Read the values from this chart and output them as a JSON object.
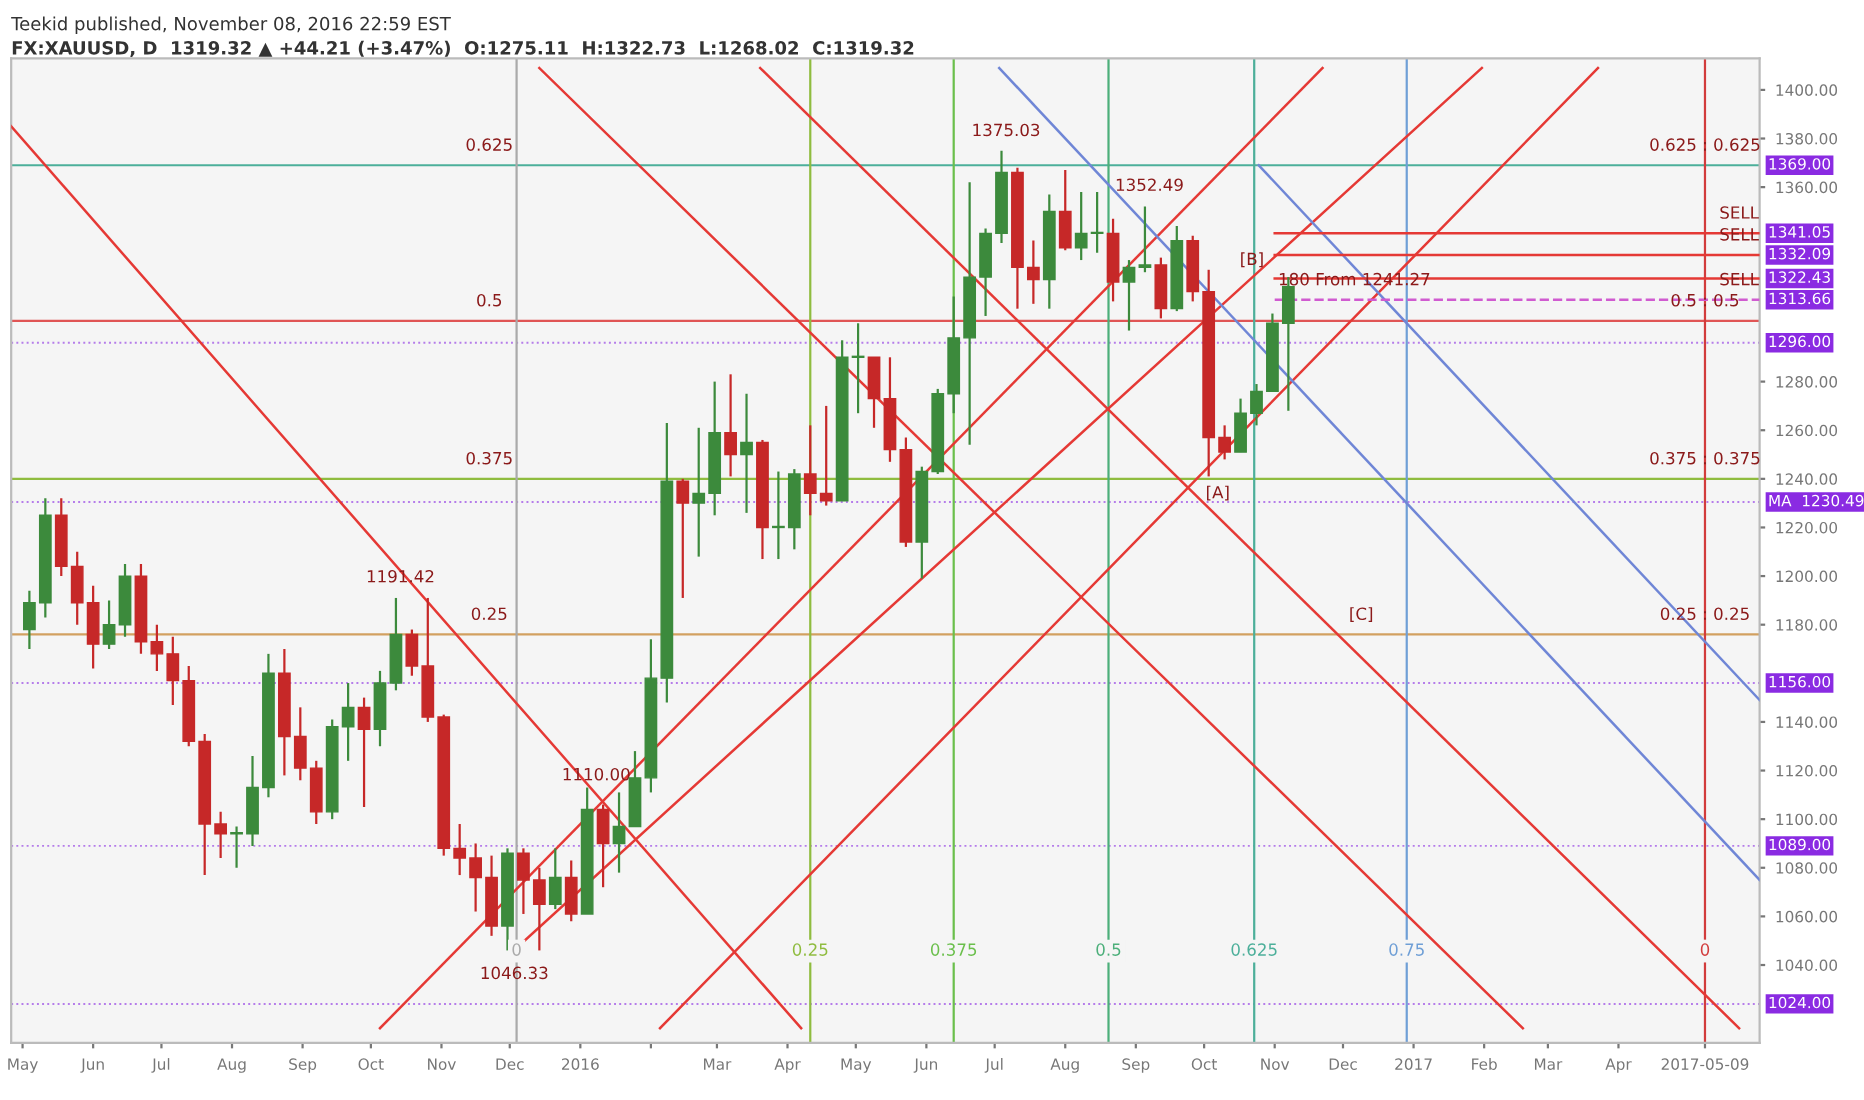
{
  "chart_data": {
    "type": "candlestick",
    "subtitle": "Teekid published, November 08, 2016 22:59 EST",
    "title": "FX:XAUUSD, D  1319.32 ▲ +44.21 (+3.47%)  O:1275.11  H:1322.73  L:1268.02  C:1319.32",
    "x": [
      "2015-05-04",
      "2015-05-11",
      "2015-05-18",
      "2015-05-25",
      "2015-06-01",
      "2015-06-08",
      "2015-06-15",
      "2015-06-22",
      "2015-06-29",
      "2015-07-06",
      "2015-07-13",
      "2015-07-20",
      "2015-07-27",
      "2015-08-03",
      "2015-08-10",
      "2015-08-17",
      "2015-08-24",
      "2015-08-31",
      "2015-09-07",
      "2015-09-14",
      "2015-09-21",
      "2015-09-28",
      "2015-10-05",
      "2015-10-12",
      "2015-10-19",
      "2015-10-26",
      "2015-11-02",
      "2015-11-09",
      "2015-11-16",
      "2015-11-23",
      "2015-11-30",
      "2015-12-07",
      "2015-12-14",
      "2015-12-21",
      "2015-12-28",
      "2016-01-04",
      "2016-01-11",
      "2016-01-18",
      "2016-01-25",
      "2016-02-01",
      "2016-02-08",
      "2016-02-15",
      "2016-02-22",
      "2016-02-29",
      "2016-03-07",
      "2016-03-14",
      "2016-03-21",
      "2016-03-28",
      "2016-04-04",
      "2016-04-11",
      "2016-04-18",
      "2016-04-25",
      "2016-05-02",
      "2016-05-09",
      "2016-05-16",
      "2016-05-23",
      "2016-05-30",
      "2016-06-06",
      "2016-06-13",
      "2016-06-20",
      "2016-06-27",
      "2016-07-04",
      "2016-07-11",
      "2016-07-18",
      "2016-07-25",
      "2016-08-01",
      "2016-08-08",
      "2016-08-15",
      "2016-08-22",
      "2016-08-29",
      "2016-09-05",
      "2016-09-12",
      "2016-09-19",
      "2016-09-26",
      "2016-10-03",
      "2016-10-10",
      "2016-10-17",
      "2016-10-24",
      "2016-10-31",
      "2016-11-07"
    ],
    "ohlc": [
      [
        1178,
        1194,
        1170,
        1189
      ],
      [
        1189,
        1232,
        1183,
        1225
      ],
      [
        1225,
        1232,
        1200,
        1204
      ],
      [
        1204,
        1210,
        1180,
        1189
      ],
      [
        1189,
        1196,
        1162,
        1172
      ],
      [
        1172,
        1190,
        1170,
        1180
      ],
      [
        1180,
        1205,
        1175,
        1200
      ],
      [
        1200,
        1205,
        1168,
        1173
      ],
      [
        1173,
        1180,
        1161,
        1168
      ],
      [
        1168,
        1175,
        1147,
        1157
      ],
      [
        1157,
        1163,
        1130,
        1132
      ],
      [
        1132,
        1135,
        1077,
        1098
      ],
      [
        1098,
        1103,
        1084,
        1094
      ],
      [
        1094,
        1097,
        1080,
        1094
      ],
      [
        1094,
        1126,
        1089,
        1113
      ],
      [
        1113,
        1168,
        1109,
        1160
      ],
      [
        1160,
        1170,
        1118,
        1134
      ],
      [
        1134,
        1146,
        1116,
        1121
      ],
      [
        1121,
        1124,
        1098,
        1103
      ],
      [
        1103,
        1141,
        1100,
        1138
      ],
      [
        1138,
        1156,
        1124,
        1146
      ],
      [
        1146,
        1150,
        1105,
        1137
      ],
      [
        1137,
        1161,
        1130,
        1156
      ],
      [
        1156,
        1191,
        1153,
        1176
      ],
      [
        1176,
        1178,
        1159,
        1163
      ],
      [
        1163,
        1191,
        1140,
        1142
      ],
      [
        1142,
        1143,
        1085,
        1088
      ],
      [
        1088,
        1098,
        1077,
        1084
      ],
      [
        1084,
        1090,
        1062,
        1076
      ],
      [
        1076,
        1085,
        1052,
        1056
      ],
      [
        1056,
        1088,
        1046,
        1086
      ],
      [
        1086,
        1088,
        1061,
        1075
      ],
      [
        1075,
        1080,
        1046,
        1065
      ],
      [
        1065,
        1088,
        1063,
        1076
      ],
      [
        1076,
        1083,
        1058,
        1061
      ],
      [
        1061,
        1113,
        1061,
        1104
      ],
      [
        1104,
        1106,
        1072,
        1090
      ],
      [
        1090,
        1111,
        1078,
        1097
      ],
      [
        1097,
        1128,
        1097,
        1117
      ],
      [
        1117,
        1174,
        1111,
        1158
      ],
      [
        1158,
        1263,
        1148,
        1239
      ],
      [
        1239,
        1240,
        1191,
        1230
      ],
      [
        1230,
        1261,
        1208,
        1234
      ],
      [
        1234,
        1280,
        1225,
        1259
      ],
      [
        1259,
        1283,
        1241,
        1250
      ],
      [
        1250,
        1275,
        1226,
        1255
      ],
      [
        1255,
        1256,
        1207,
        1220
      ],
      [
        1220,
        1243,
        1207,
        1220
      ],
      [
        1220,
        1244,
        1211,
        1242
      ],
      [
        1242,
        1262,
        1225,
        1234
      ],
      [
        1234,
        1270,
        1229,
        1231
      ],
      [
        1231,
        1297,
        1231,
        1290
      ],
      [
        1290,
        1304,
        1267,
        1290
      ],
      [
        1290,
        1290,
        1261,
        1273
      ],
      [
        1273,
        1290,
        1247,
        1252
      ],
      [
        1252,
        1257,
        1212,
        1214
      ],
      [
        1214,
        1245,
        1199,
        1243
      ],
      [
        1243,
        1277,
        1242,
        1275
      ],
      [
        1275,
        1315,
        1267,
        1298
      ],
      [
        1298,
        1362,
        1254,
        1323
      ],
      [
        1323,
        1343,
        1307,
        1341
      ],
      [
        1341,
        1375,
        1337,
        1366
      ],
      [
        1366,
        1368,
        1310,
        1327
      ],
      [
        1327,
        1338,
        1312,
        1322
      ],
      [
        1322,
        1357,
        1310,
        1350
      ],
      [
        1350,
        1367,
        1334,
        1335
      ],
      [
        1335,
        1358,
        1330,
        1341
      ],
      [
        1341,
        1358,
        1333,
        1341
      ],
      [
        1341,
        1347,
        1313,
        1321
      ],
      [
        1321,
        1330,
        1301,
        1327
      ],
      [
        1327,
        1352,
        1325,
        1328
      ],
      [
        1328,
        1331,
        1306,
        1310
      ],
      [
        1310,
        1344,
        1309,
        1338
      ],
      [
        1338,
        1340,
        1313,
        1317
      ],
      [
        1317,
        1326,
        1241,
        1257
      ],
      [
        1257,
        1262,
        1248,
        1251
      ],
      [
        1251,
        1273,
        1251,
        1267
      ],
      [
        1267,
        1279,
        1262,
        1276
      ],
      [
        1276,
        1308,
        1276,
        1304
      ],
      [
        1304,
        1323,
        1268,
        1319
      ]
    ],
    "colors": [
      "#3c8a3c",
      "#3c8a3c",
      "#c62828",
      "#c62828",
      "#c62828",
      "#3c8a3c",
      "#3c8a3c",
      "#c62828",
      "#c62828",
      "#c62828",
      "#c62828",
      "#c62828",
      "#c62828",
      "#3c8a3c",
      "#3c8a3c",
      "#3c8a3c",
      "#c62828",
      "#c62828",
      "#c62828",
      "#3c8a3c",
      "#3c8a3c",
      "#c62828",
      "#3c8a3c",
      "#3c8a3c",
      "#c62828",
      "#c62828",
      "#c62828",
      "#c62828",
      "#c62828",
      "#c62828",
      "#3c8a3c",
      "#c62828",
      "#c62828",
      "#3c8a3c",
      "#c62828",
      "#3c8a3c",
      "#c62828",
      "#3c8a3c",
      "#3c8a3c",
      "#3c8a3c",
      "#3c8a3c",
      "#c62828",
      "#3c8a3c",
      "#3c8a3c",
      "#c62828",
      "#3c8a3c",
      "#c62828",
      "#3c8a3c",
      "#3c8a3c",
      "#c62828",
      "#c62828",
      "#3c8a3c",
      "#3c8a3c",
      "#c62828",
      "#c62828",
      "#c62828",
      "#3c8a3c",
      "#3c8a3c",
      "#3c8a3c",
      "#3c8a3c",
      "#3c8a3c",
      "#3c8a3c",
      "#c62828",
      "#c62828",
      "#3c8a3c",
      "#c62828",
      "#3c8a3c",
      "#3c8a3c",
      "#c62828",
      "#3c8a3c",
      "#3c8a3c",
      "#c62828",
      "#3c8a3c",
      "#c62828",
      "#c62828",
      "#c62828",
      "#3c8a3c",
      "#3c8a3c",
      "#3c8a3c",
      "#3c8a3c"
    ],
    "series": [
      {
        "type": "line",
        "color": "#e53935",
        "x": [
          "2015-12-04",
          "2017-01-31"
        ],
        "values": [
          1047,
          1409
        ]
      },
      {
        "type": "line",
        "color": "#e53935",
        "x": [
          "2015-10-05",
          "2016-11-22"
        ],
        "values": [
          1014,
          1409
        ]
      },
      {
        "type": "line",
        "color": "#e53935",
        "x": [
          "2016-02-05",
          "2017-03-23"
        ],
        "values": [
          1014,
          1409
        ]
      },
      {
        "type": "line",
        "color": "#e53935",
        "x": [
          "2015-04-26",
          "2016-04-07"
        ],
        "values": [
          1385,
          1014
        ]
      },
      {
        "type": "line",
        "color": "#e53935",
        "x": [
          "2015-12-14",
          "2017-02-18"
        ],
        "values": [
          1409,
          1014
        ]
      },
      {
        "type": "line",
        "color": "#e53935",
        "x": [
          "2016-03-20",
          "2017-05-24"
        ],
        "values": [
          1409,
          1014
        ]
      },
      {
        "type": "line",
        "color": "#6f86d6",
        "x": [
          "2016-07-03",
          "2017-06-02"
        ],
        "values": [
          1409,
          1075
        ]
      },
      {
        "type": "line",
        "color": "#6f86d6",
        "x": [
          "2016-10-25",
          "2017-06-02"
        ],
        "values": [
          1369,
          1149
        ]
      },
      {
        "type": "line",
        "color": "#e53935",
        "x": [
          "2016-11-01",
          "2017-06-02"
        ],
        "values": [
          1341.05,
          1341.05
        ]
      },
      {
        "type": "line",
        "color": "#e53935",
        "x": [
          "2016-11-01",
          "2017-06-02"
        ],
        "values": [
          1332.09,
          1332.09
        ]
      },
      {
        "type": "line",
        "color": "#e53935",
        "x": [
          "2016-11-01",
          "2017-06-02"
        ],
        "values": [
          1322.43,
          1322.43
        ]
      },
      {
        "type": "line",
        "color": "#d05bd0",
        "line_style": "dashed",
        "x": [
          "2016-11-01",
          "2017-06-02"
        ],
        "values": [
          1313.66,
          1313.66
        ]
      }
    ],
    "ref_lines": [
      {
        "axis": "y",
        "value": 1369,
        "color": "#4caf9a"
      },
      {
        "axis": "y",
        "value": 1305,
        "color": "#e05555"
      },
      {
        "axis": "y",
        "value": 1240,
        "color": "#8fbc3f"
      },
      {
        "axis": "y",
        "value": 1176,
        "color": "#d2a060"
      },
      {
        "axis": "y",
        "value": 1296,
        "label": "1296.00",
        "color": "#8a2be2"
      },
      {
        "axis": "y",
        "value": 1230.49,
        "label": "MA  1230.49",
        "color": "#8a2be2"
      },
      {
        "axis": "y",
        "value": 1156,
        "label": "1156.00",
        "color": "#8a2be2"
      },
      {
        "axis": "y",
        "value": 1089,
        "label": "1089.00",
        "color": "#8a2be2"
      },
      {
        "axis": "y",
        "value": 1024,
        "label": "1024.00",
        "color": "#8a2be2"
      },
      {
        "axis": "x",
        "value": "2015-12-04",
        "label": "0",
        "color": "#aaaaaa"
      },
      {
        "axis": "x",
        "value": "2016-04-11",
        "label": "0.25",
        "color": "#8fbc3f"
      },
      {
        "axis": "x",
        "value": "2016-06-13",
        "label": "0.375",
        "color": "#6abf4b"
      },
      {
        "axis": "x",
        "value": "2016-08-20",
        "label": "0.5",
        "color": "#4caf7a"
      },
      {
        "axis": "x",
        "value": "2016-10-23",
        "label": "0.625",
        "color": "#4caf9a"
      },
      {
        "axis": "x",
        "value": "2016-12-29",
        "label": "0.75",
        "color": "#6f9fd6"
      },
      {
        "axis": "x",
        "value": "2017-05-09",
        "label": "0",
        "color": "#d23c3c"
      }
    ],
    "annotations": [
      {
        "text": "1375.03",
        "x": "2016-07-06",
        "y": 1375.03
      },
      {
        "text": "1352.49",
        "x": "2016-09-07",
        "y": 1352.49
      },
      {
        "text": "1191.42",
        "x": "2015-10-14",
        "y": 1191.42
      },
      {
        "text": "1110.00",
        "x": "2016-01-08",
        "y": 1110
      },
      {
        "text": "1046.33",
        "x": "2015-12-03",
        "y": 1046.33
      },
      {
        "text": "[A]",
        "x": "2016-10-07",
        "y": 1226
      },
      {
        "text": "[B]",
        "x": "2016-10-22",
        "y": 1322
      },
      {
        "text": "[C]",
        "x": "2016-12-09",
        "y": 1176
      },
      {
        "text": "SELL",
        "x": "2017-05-24",
        "y": 1341.05
      },
      {
        "text": "SELL",
        "x": "2017-05-24",
        "y": 1332.09
      },
      {
        "text": "SELL",
        "x": "2017-05-24",
        "y": 1313.66
      },
      {
        "text": "180 From 1241.27",
        "x": "2016-12-06",
        "y": 1313.66
      },
      {
        "text": "0.625",
        "x": "2015-11-22",
        "y": 1369
      },
      {
        "text": "0.5",
        "x": "2015-11-22",
        "y": 1305
      },
      {
        "text": "0.375",
        "x": "2015-11-22",
        "y": 1240
      },
      {
        "text": "0.25",
        "x": "2015-11-22",
        "y": 1176
      },
      {
        "text": "0.625 : 0.625",
        "x": "2017-05-09",
        "y": 1369
      },
      {
        "text": "0.5 : 0.5",
        "x": "2017-05-09",
        "y": 1305
      },
      {
        "text": "0.375 : 0.375",
        "x": "2017-05-09",
        "y": 1240
      },
      {
        "text": "0.25 : 0.25",
        "x": "2017-05-09",
        "y": 1176
      },
      {
        "text": "1369.00",
        "x": "2017-06-02",
        "y": 1369
      },
      {
        "text": "1341.05",
        "x": "2017-06-02",
        "y": 1341.05
      },
      {
        "text": "1332.09",
        "x": "2017-06-02",
        "y": 1332.09
      },
      {
        "text": "1322.43",
        "x": "2017-06-02",
        "y": 1322.43
      },
      {
        "text": "1313.66",
        "x": "2017-06-02",
        "y": 1313.66
      }
    ],
    "xlim": [
      "2015-04-26",
      "2017-06-02"
    ],
    "xticks": [
      {
        "value": "2015-05-01",
        "label": "May"
      },
      {
        "value": "2015-06-01",
        "label": "Jun"
      },
      {
        "value": "2015-07-01",
        "label": "Jul"
      },
      {
        "value": "2015-08-01",
        "label": "Aug"
      },
      {
        "value": "2015-09-01",
        "label": "Sep"
      },
      {
        "value": "2015-10-01",
        "label": "Oct"
      },
      {
        "value": "2015-11-01",
        "label": "Nov"
      },
      {
        "value": "2015-12-01",
        "label": "Dec"
      },
      {
        "value": "2016-01-01",
        "label": "2016"
      },
      {
        "value": "2016-02-01",
        "label": null
      },
      {
        "value": "2016-03-01",
        "label": "Mar"
      },
      {
        "value": "2016-04-01",
        "label": "Apr"
      },
      {
        "value": "2016-05-01",
        "label": "May"
      },
      {
        "value": "2016-06-01",
        "label": "Jun"
      },
      {
        "value": "2016-07-01",
        "label": "Jul"
      },
      {
        "value": "2016-08-01",
        "label": "Aug"
      },
      {
        "value": "2016-09-01",
        "label": "Sep"
      },
      {
        "value": "2016-10-01",
        "label": "Oct"
      },
      {
        "value": "2016-11-01",
        "label": "Nov"
      },
      {
        "value": "2016-12-01",
        "label": "Dec"
      },
      {
        "value": "2017-01-01",
        "label": "2017"
      },
      {
        "value": "2017-02-01",
        "label": "Feb"
      },
      {
        "value": "2017-03-01",
        "label": "Mar"
      },
      {
        "value": "2017-04-01",
        "label": "Apr"
      },
      {
        "value": "2017-05-09",
        "label": "2017-05-09"
      }
    ],
    "ylim": [
      1008,
      1413
    ],
    "yticks": [
      {
        "value": 1040,
        "label": "1040.00"
      },
      {
        "value": 1060,
        "label": "1060.00"
      },
      {
        "value": 1080,
        "label": "1080.00"
      },
      {
        "value": 1100,
        "label": "1100.00"
      },
      {
        "value": 1120,
        "label": "1120.00"
      },
      {
        "value": 1140,
        "label": "1140.00"
      },
      {
        "value": 1180,
        "label": "1180.00"
      },
      {
        "value": 1200,
        "label": "1200.00"
      },
      {
        "value": 1220,
        "label": "1220.00"
      },
      {
        "value": 1240,
        "label": "1240.00"
      },
      {
        "value": 1260,
        "label": "1260.00"
      },
      {
        "value": 1280,
        "label": "1280.00"
      },
      {
        "value": 1360,
        "label": "1360.00"
      },
      {
        "value": 1380,
        "label": "1380.00"
      },
      {
        "value": 1400,
        "label": "1400.00"
      }
    ]
  }
}
